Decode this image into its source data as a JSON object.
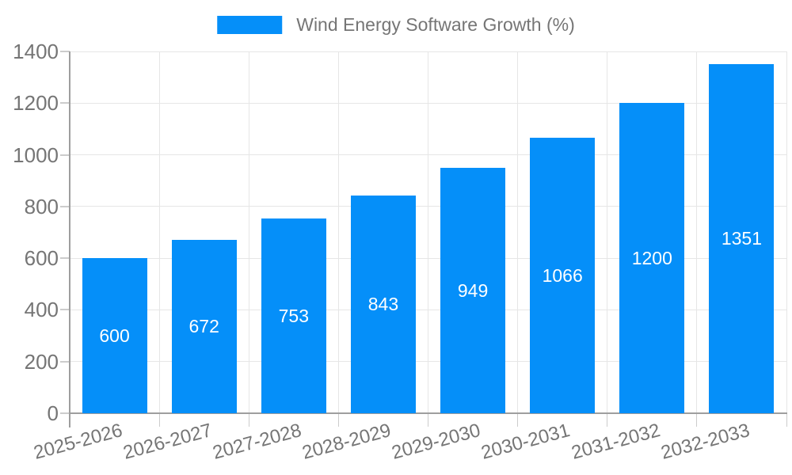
{
  "chart_data": {
    "type": "bar",
    "title": "Wind Energy Software Growth (%)",
    "categories": [
      "2025-2026",
      "2026-2027",
      "2027-2028",
      "2028-2029",
      "2029-2030",
      "2030-2031",
      "2031-2032",
      "2032-2033"
    ],
    "values": [
      600,
      672,
      753,
      843,
      949,
      1066,
      1200,
      1351
    ],
    "bar_labels": [
      "600",
      "672",
      "753",
      "843",
      "949",
      "1066",
      "1200",
      "1351"
    ],
    "xlabel": "",
    "ylabel": "",
    "ylim": [
      0,
      1400
    ],
    "yticks": [
      0,
      200,
      400,
      600,
      800,
      1000,
      1200,
      1400
    ],
    "ytick_labels": [
      "0",
      "200",
      "400",
      "600",
      "800",
      "1000",
      "1200",
      "1400"
    ],
    "grid": true,
    "legend_position": "top-center",
    "legend_label": "Wind Energy Software Growth (%)",
    "colors": {
      "bar": "#058ff9",
      "axis_text": "#757575",
      "grid_line": "#e6e6e6",
      "axis_line": "#9e9e9e",
      "tick_line": "#cccccc",
      "value_label": "#ffffff",
      "background": "#ffffff"
    }
  }
}
